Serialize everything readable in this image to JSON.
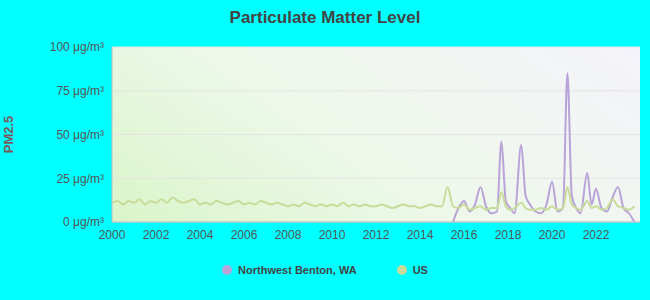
{
  "chart_data": {
    "type": "line",
    "title": "Particulate Matter Level",
    "y_label": "PM2.5",
    "x": [
      2000,
      2000.25,
      2000.5,
      2000.75,
      2001,
      2001.25,
      2001.5,
      2001.75,
      2002,
      2002.25,
      2002.5,
      2002.75,
      2003,
      2003.25,
      2003.5,
      2003.75,
      2004,
      2004.25,
      2004.5,
      2004.75,
      2005,
      2005.25,
      2005.5,
      2005.75,
      2006,
      2006.25,
      2006.5,
      2006.75,
      2007,
      2007.25,
      2007.5,
      2007.75,
      2008,
      2008.25,
      2008.5,
      2008.75,
      2009,
      2009.25,
      2009.5,
      2009.75,
      2010,
      2010.25,
      2010.5,
      2010.75,
      2011,
      2011.25,
      2011.5,
      2011.75,
      2012,
      2012.25,
      2012.5,
      2012.75,
      2013,
      2013.25,
      2013.5,
      2013.75,
      2014,
      2014.25,
      2014.5,
      2014.75,
      2015,
      2015.25,
      2015.5,
      2015.75,
      2016,
      2016.25,
      2016.5,
      2016.75,
      2017,
      2017.25,
      2017.5,
      2017.7,
      2017.9,
      2018.1,
      2018.3,
      2018.6,
      2018.8,
      2019,
      2019.25,
      2019.5,
      2019.75,
      2020,
      2020.25,
      2020.5,
      2020.7,
      2020.9,
      2021.1,
      2021.3,
      2021.6,
      2021.8,
      2022,
      2022.25,
      2022.5,
      2022.75,
      2023,
      2023.25,
      2023.5,
      2023.75
    ],
    "series": [
      {
        "name": "Northwest Benton, WA",
        "color": "#b9a3d8",
        "values": [
          null,
          null,
          null,
          null,
          null,
          null,
          null,
          null,
          null,
          null,
          null,
          null,
          null,
          null,
          null,
          null,
          null,
          null,
          null,
          null,
          null,
          null,
          null,
          null,
          null,
          null,
          null,
          null,
          null,
          null,
          null,
          null,
          null,
          null,
          null,
          null,
          null,
          null,
          null,
          null,
          null,
          null,
          null,
          null,
          null,
          null,
          null,
          null,
          null,
          null,
          null,
          null,
          null,
          null,
          null,
          null,
          null,
          null,
          null,
          null,
          null,
          null,
          0,
          8,
          12,
          6,
          10,
          20,
          9,
          5,
          6,
          46,
          12,
          8,
          5,
          44,
          15,
          10,
          6,
          5,
          10,
          23,
          6,
          8,
          85,
          15,
          8,
          5,
          28,
          10,
          19,
          8,
          6,
          14,
          20,
          8,
          5,
          0
        ]
      },
      {
        "name": "US",
        "color": "#c8dc9a",
        "values": [
          11,
          12,
          10,
          12,
          11,
          13,
          10,
          12,
          11,
          13,
          11,
          14,
          12,
          11,
          12,
          13,
          10,
          11,
          10,
          12,
          11,
          10,
          11,
          12,
          10,
          11,
          10,
          12,
          11,
          10,
          11,
          10,
          9,
          10,
          9,
          11,
          10,
          9,
          10,
          9,
          10,
          9,
          11,
          9,
          10,
          9,
          10,
          9,
          9,
          10,
          9,
          8,
          9,
          10,
          9,
          9,
          8,
          9,
          10,
          9,
          9,
          20,
          9,
          8,
          10,
          7,
          8,
          9,
          7,
          8,
          8,
          17,
          9,
          7,
          8,
          11,
          8,
          7,
          7,
          8,
          7,
          9,
          7,
          8,
          20,
          10,
          8,
          7,
          12,
          8,
          9,
          7,
          8,
          13,
          9,
          8,
          7,
          9
        ]
      }
    ],
    "xlim": [
      2000,
      2024
    ],
    "xticks": [
      2000,
      2002,
      2004,
      2006,
      2008,
      2010,
      2012,
      2014,
      2016,
      2018,
      2020,
      2022
    ],
    "ylim": [
      0,
      100
    ],
    "yticks": [
      {
        "value": 0,
        "label": "0 μg/m³"
      },
      {
        "value": 25,
        "label": "25 μg/m³"
      },
      {
        "value": 50,
        "label": "50 μg/m³"
      },
      {
        "value": 75,
        "label": "75 μg/m³"
      },
      {
        "value": 100,
        "label": "100 μg/m³"
      }
    ],
    "grid": true,
    "legend": "bottom"
  }
}
